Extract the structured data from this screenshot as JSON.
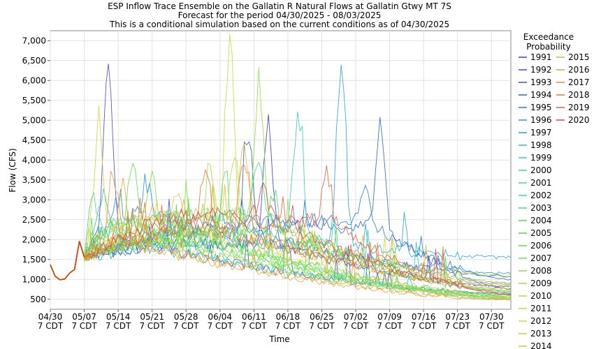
{
  "title_lines": [
    "ESP Inflow Trace Ensemble on the Gallatin R Natural Flows at Gallatin Gtwy MT 7S",
    "Forecast for the period 04/30/2025 - 08/03/2025",
    "This is a conditional simulation based on the current conditions as of 04/30/2025"
  ],
  "legend_title": [
    "Exceedance",
    "Probability"
  ],
  "chart_data": {
    "type": "line",
    "xlabel": "Time",
    "ylabel": "Flow (CFS)",
    "x_range": [
      "2025-04-30",
      "2025-08-03"
    ],
    "ylim": [
      250,
      7250
    ],
    "y_ticks": [
      {
        "value": 500,
        "label": "500"
      },
      {
        "value": 1000,
        "label": "1,000"
      },
      {
        "value": 1500,
        "label": "1,500"
      },
      {
        "value": 2000,
        "label": "2,000"
      },
      {
        "value": 2500,
        "label": "2,500"
      },
      {
        "value": 3000,
        "label": "3,000"
      },
      {
        "value": 3500,
        "label": "3,500"
      },
      {
        "value": 4000,
        "label": "4,000"
      },
      {
        "value": 4500,
        "label": "4,500"
      },
      {
        "value": 5000,
        "label": "5,000"
      },
      {
        "value": 5500,
        "label": "5,500"
      },
      {
        "value": 6000,
        "label": "6,000"
      },
      {
        "value": 6500,
        "label": "6,500"
      },
      {
        "value": 7000,
        "label": "7,000"
      }
    ],
    "x_ticks": [
      {
        "date": "2025-04-30",
        "label1": "04/30",
        "label2": "7 CDT"
      },
      {
        "date": "2025-05-07",
        "label1": "05/07",
        "label2": "7 CDT"
      },
      {
        "date": "2025-05-14",
        "label1": "05/14",
        "label2": "7 CDT"
      },
      {
        "date": "2025-05-21",
        "label1": "05/21",
        "label2": "7 CDT"
      },
      {
        "date": "2025-05-28",
        "label1": "05/28",
        "label2": "7 CDT"
      },
      {
        "date": "2025-06-04",
        "label1": "06/04",
        "label2": "7 CDT"
      },
      {
        "date": "2025-06-11",
        "label1": "06/11",
        "label2": "7 CDT"
      },
      {
        "date": "2025-06-18",
        "label1": "06/18",
        "label2": "7 CDT"
      },
      {
        "date": "2025-06-25",
        "label1": "06/25",
        "label2": "7 CDT"
      },
      {
        "date": "2025-07-02",
        "label1": "07/02",
        "label2": "7 CDT"
      },
      {
        "date": "2025-07-09",
        "label1": "07/09",
        "label2": "7 CDT"
      },
      {
        "date": "2025-07-16",
        "label1": "07/16",
        "label2": "7 CDT"
      },
      {
        "date": "2025-07-23",
        "label1": "07/23",
        "label2": "7 CDT"
      },
      {
        "date": "2025-07-30",
        "label1": "07/30",
        "label2": "7 CDT"
      }
    ],
    "grid": true,
    "legend_position": "right",
    "observed": {
      "color": "#cc4400",
      "points": [
        [
          "2025-04-30",
          1370
        ],
        [
          "2025-05-01",
          1080
        ],
        [
          "2025-05-02",
          990
        ],
        [
          "2025-05-03",
          1010
        ],
        [
          "2025-05-04",
          1160
        ],
        [
          "2025-05-05",
          1250
        ],
        [
          "2025-05-06",
          1960
        ],
        [
          "2025-05-07",
          1560
        ]
      ]
    },
    "series": [
      {
        "name": "1991",
        "color": "#3b3bc4",
        "peak_date": "2025-06-14",
        "peak": 4950,
        "end": 820
      },
      {
        "name": "1992",
        "color": "#4a46c8",
        "peak_date": "2025-05-12",
        "peak": 6600,
        "end": 640
      },
      {
        "name": "1993",
        "color": "#3452cc",
        "peak_date": "2025-06-10",
        "peak": 4400,
        "end": 1080
      },
      {
        "name": "1994",
        "color": "#2e64d0",
        "peak_date": "2025-07-07",
        "peak": 4800,
        "end": 760
      },
      {
        "name": "1995",
        "color": "#2a7ad2",
        "peak_date": "2025-07-04",
        "peak": 3500,
        "end": 1000
      },
      {
        "name": "1996",
        "color": "#2a90d0",
        "peak_date": "2025-05-20",
        "peak": 3400,
        "end": 1150
      },
      {
        "name": "1997",
        "color": "#28a6c8",
        "peak_date": "2025-06-29",
        "peak": 6500,
        "end": 1550
      },
      {
        "name": "1998",
        "color": "#2cbcbf",
        "peak_date": "2025-05-11",
        "peak": 3200,
        "end": 620
      },
      {
        "name": "1999",
        "color": "#34ccc0",
        "peak_date": "2025-06-20",
        "peak": 5100,
        "end": 900
      },
      {
        "name": "2000",
        "color": "#3cd4b0",
        "peak_date": "2025-05-09",
        "peak": 3000,
        "end": 560
      },
      {
        "name": "2001",
        "color": "#40d89c",
        "peak_date": "2025-05-22",
        "peak": 2200,
        "end": 520
      },
      {
        "name": "2002",
        "color": "#44dc88",
        "peak_date": "2025-06-12",
        "peak": 4200,
        "end": 680
      },
      {
        "name": "2003",
        "color": "#48de74",
        "peak_date": "2025-06-05",
        "peak": 3600,
        "end": 600
      },
      {
        "name": "2004",
        "color": "#4cdc60",
        "peak_date": "2025-05-24",
        "peak": 2600,
        "end": 540
      },
      {
        "name": "2005",
        "color": "#54dc4c",
        "peak_date": "2025-06-15",
        "peak": 3200,
        "end": 700
      },
      {
        "name": "2006",
        "color": "#64de44",
        "peak_date": "2025-05-17",
        "peak": 4100,
        "end": 580
      },
      {
        "name": "2007",
        "color": "#78e040",
        "peak_date": "2025-05-21",
        "peak": 3500,
        "end": 500
      },
      {
        "name": "2008",
        "color": "#8ce03e",
        "peak_date": "2025-06-12",
        "peak": 6000,
        "end": 720
      },
      {
        "name": "2009",
        "color": "#a0e03c",
        "peak_date": "2025-06-02",
        "peak": 3900,
        "end": 640
      },
      {
        "name": "2010",
        "color": "#b4e03a",
        "peak_date": "2025-06-07",
        "peak": 4400,
        "end": 820
      },
      {
        "name": "2011",
        "color": "#c4dc3a",
        "peak_date": "2025-06-06",
        "peak": 7100,
        "end": 1100
      },
      {
        "name": "2012",
        "color": "#d2d43a",
        "peak_date": "2025-05-10",
        "peak": 4600,
        "end": 560
      },
      {
        "name": "2013",
        "color": "#dcc83a",
        "peak_date": "2025-05-26",
        "peak": 3100,
        "end": 540
      },
      {
        "name": "2014",
        "color": "#e2ba3a",
        "peak_date": "2025-06-09",
        "peak": 4300,
        "end": 920
      },
      {
        "name": "2015",
        "color": "#e6aa3a",
        "peak_date": "2025-05-15",
        "peak": 3300,
        "end": 480
      },
      {
        "name": "2016",
        "color": "#e89a3c",
        "peak_date": "2025-05-13",
        "peak": 3700,
        "end": 500
      },
      {
        "name": "2017",
        "color": "#e8883e",
        "peak_date": "2025-06-09",
        "peak": 4200,
        "end": 760
      },
      {
        "name": "2018",
        "color": "#e67440",
        "peak_date": "2025-06-01",
        "peak": 3900,
        "end": 880
      },
      {
        "name": "2019",
        "color": "#e06044",
        "peak_date": "2025-06-26",
        "peak": 3650,
        "end": 600
      },
      {
        "name": "2020",
        "color": "#d84a48",
        "peak_date": "2025-06-13",
        "peak": 3300,
        "end": 660
      }
    ]
  }
}
